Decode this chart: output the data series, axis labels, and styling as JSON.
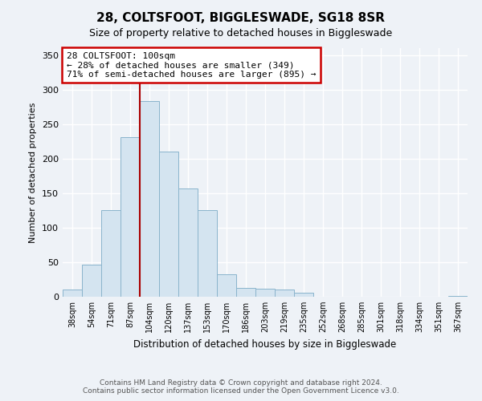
{
  "title": "28, COLTSFOOT, BIGGLESWADE, SG18 8SR",
  "subtitle": "Size of property relative to detached houses in Biggleswade",
  "xlabel": "Distribution of detached houses by size in Biggleswade",
  "ylabel": "Number of detached properties",
  "footnote1": "Contains HM Land Registry data © Crown copyright and database right 2024.",
  "footnote2": "Contains public sector information licensed under the Open Government Licence v3.0.",
  "bar_labels": [
    "38sqm",
    "54sqm",
    "71sqm",
    "87sqm",
    "104sqm",
    "120sqm",
    "137sqm",
    "153sqm",
    "170sqm",
    "186sqm",
    "203sqm",
    "219sqm",
    "235sqm",
    "252sqm",
    "268sqm",
    "285sqm",
    "301sqm",
    "318sqm",
    "334sqm",
    "351sqm",
    "367sqm"
  ],
  "bar_values": [
    11,
    47,
    126,
    231,
    283,
    210,
    157,
    125,
    33,
    13,
    12,
    10,
    6,
    0,
    0,
    0,
    0,
    0,
    0,
    0,
    1
  ],
  "bar_color": "#d4e4f0",
  "bar_edge_color": "#8ab4cc",
  "vline_x": 4,
  "vline_color": "#aa0000",
  "annotation_title": "28 COLTSFOOT: 100sqm",
  "annotation_line1": "← 28% of detached houses are smaller (349)",
  "annotation_line2": "71% of semi-detached houses are larger (895) →",
  "annotation_box_color": "white",
  "annotation_box_edge": "#cc0000",
  "ylim": [
    0,
    360
  ],
  "yticks": [
    0,
    50,
    100,
    150,
    200,
    250,
    300,
    350
  ],
  "background_color": "#eef2f7",
  "plot_bg_color": "#eef2f7",
  "grid_color": "#ffffff",
  "title_fontsize": 11,
  "subtitle_fontsize": 9
}
